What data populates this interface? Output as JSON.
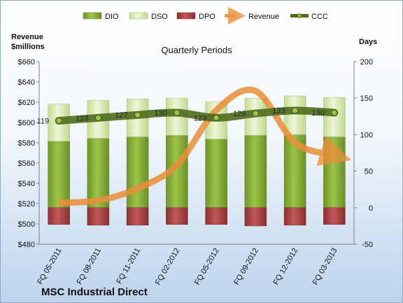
{
  "company": "MSC Industrial Direct",
  "colors": {
    "dio": "#8db33c",
    "dso": "#d9ebb5",
    "dpo": "#b24648",
    "revenue": "#ea8e3a",
    "ccc": "#4f6b1c"
  },
  "chart_data": {
    "type": "bar",
    "subtitle": "Quarterly Periods",
    "left_axis": {
      "title_line1": "Revenue",
      "title_line2": "$millions",
      "ylim": [
        480,
        660
      ],
      "ticks": [
        "$480",
        "$500",
        "$520",
        "$540",
        "$560",
        "$580",
        "$600",
        "$620",
        "$640",
        "$660"
      ]
    },
    "right_axis": {
      "title": "Days",
      "ylim": [
        -50,
        200
      ],
      "ticks": [
        "-50",
        "0",
        "50",
        "100",
        "150",
        "200"
      ]
    },
    "categories": [
      "FQ 05-2011",
      "FQ 08-2011",
      "FQ 11-2011",
      "FQ 02-2012",
      "FQ 05-2012",
      "FQ 09-2012",
      "FQ 12-2012",
      "FQ 03-2013"
    ],
    "series": [
      {
        "name": "DIO",
        "axis": "right",
        "type": "stacked-bar",
        "values": [
          91,
          95,
          97,
          99,
          94,
          99,
          100,
          97
        ]
      },
      {
        "name": "DSO",
        "axis": "right",
        "type": "stacked-bar",
        "values": [
          51,
          52,
          52,
          51,
          51,
          51,
          53,
          54
        ]
      },
      {
        "name": "DPO",
        "axis": "right",
        "type": "stacked-bar-negative",
        "values": [
          -23,
          -24,
          -24,
          -23,
          -23,
          -25,
          -24,
          -23
        ]
      },
      {
        "name": "Revenue",
        "axis": "left",
        "type": "line",
        "values": [
          521,
          523,
          535,
          558,
          612,
          631,
          580,
          568
        ]
      },
      {
        "name": "CCC",
        "axis": "right",
        "type": "line",
        "values": [
          119,
          123,
          127,
          130,
          123,
          129,
          133,
          130
        ]
      }
    ],
    "ccc_labels": [
      "119",
      "123",
      "127",
      "130",
      "123",
      "129",
      "133",
      "130"
    ],
    "legend": [
      "DIO",
      "DSO",
      "DPO",
      "Revenue",
      "CCC"
    ],
    "legend_position": "top",
    "grid": false
  }
}
